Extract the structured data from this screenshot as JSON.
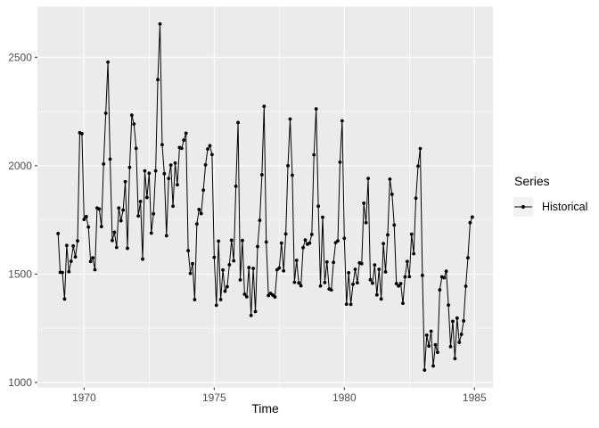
{
  "figure": {
    "xlabel": "Time",
    "legend": {
      "title": "Series",
      "items": [
        {
          "label": "Historical"
        }
      ]
    }
  },
  "chart_data": {
    "type": "line",
    "title": "",
    "xlabel": "Time",
    "ylabel": "",
    "legend_title": "Series",
    "legend_position": "right",
    "grid": true,
    "marker": "line-with-points",
    "x_ticks": [
      1970,
      1975,
      1980,
      1985
    ],
    "y_ticks": [
      1000,
      1500,
      2000,
      2500
    ],
    "x_minor_ticks": [
      1972.5,
      1977.5,
      1982.5
    ],
    "y_minor_ticks": [
      1250,
      1750,
      2250
    ],
    "xlim": [
      1968.204,
      1985.713
    ],
    "ylim": [
      977,
      2734
    ],
    "colors": {
      "panel_bg": "#EBEBEB",
      "grid": "#FFFFFF",
      "line": "#000000",
      "point": "#000000",
      "axis_text": "#4D4D4D",
      "tick_mark": "#333333",
      "outer_bg": "#FFFFFF",
      "legend_key_bg": "#F2F2F2"
    },
    "series": [
      {
        "name": "Historical",
        "start": 1969,
        "frequency": 12,
        "values": [
          1687,
          1508,
          1507,
          1385,
          1632,
          1511,
          1559,
          1630,
          1579,
          1653,
          2152,
          2148,
          1752,
          1765,
          1717,
          1558,
          1575,
          1520,
          1805,
          1800,
          1719,
          2008,
          2242,
          2478,
          2030,
          1655,
          1693,
          1623,
          1805,
          1746,
          1795,
          1926,
          1619,
          1992,
          2233,
          2192,
          2080,
          1768,
          1835,
          1569,
          1976,
          1853,
          1965,
          1689,
          1778,
          1976,
          2397,
          2654,
          2097,
          1963,
          1677,
          1941,
          2003,
          1813,
          2012,
          1912,
          2084,
          2080,
          2118,
          2150,
          1608,
          1503,
          1548,
          1382,
          1731,
          1798,
          1779,
          1887,
          2004,
          2077,
          2092,
          2051,
          1577,
          1356,
          1652,
          1382,
          1519,
          1421,
          1442,
          1543,
          1656,
          1561,
          1905,
          2199,
          1473,
          1655,
          1407,
          1395,
          1530,
          1309,
          1526,
          1327,
          1627,
          1748,
          1958,
          2274,
          1648,
          1401,
          1411,
          1403,
          1394,
          1520,
          1528,
          1643,
          1515,
          1685,
          2000,
          2215,
          1956,
          1462,
          1563,
          1459,
          1446,
          1622,
          1657,
          1638,
          1643,
          1683,
          2050,
          2262,
          1813,
          1445,
          1762,
          1461,
          1556,
          1431,
          1427,
          1554,
          1645,
          1653,
          2016,
          2207,
          1665,
          1361,
          1506,
          1360,
          1453,
          1522,
          1460,
          1552,
          1548,
          1827,
          1737,
          1941,
          1474,
          1458,
          1542,
          1404,
          1522,
          1385,
          1641,
          1510,
          1681,
          1938,
          1868,
          1726,
          1456,
          1445,
          1456,
          1365,
          1487,
          1558,
          1488,
          1684,
          1594,
          1850,
          1998,
          2079,
          1494,
          1057,
          1218,
          1168,
          1236,
          1076,
          1174,
          1139,
          1427,
          1487,
          1483,
          1513,
          1357,
          1165,
          1282,
          1110,
          1297,
          1185,
          1222,
          1284,
          1444,
          1575,
          1737,
          1763
        ]
      }
    ]
  }
}
